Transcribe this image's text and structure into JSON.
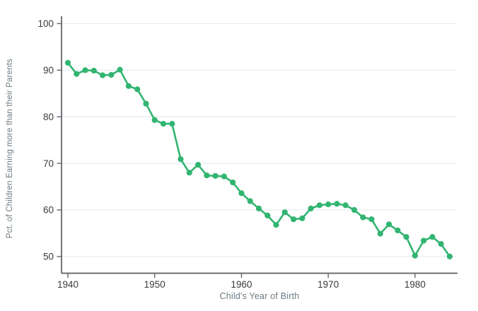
{
  "chart_data": {
    "type": "line",
    "title": "",
    "xlabel": "Child's Year of Birth",
    "ylabel": "Pct. of Children Earning more than their Parents",
    "x_ticks": [
      1940,
      1950,
      1960,
      1970,
      1980
    ],
    "y_ticks": [
      50,
      60,
      70,
      80,
      90,
      100
    ],
    "xlim": [
      1939.3,
      1984.9
    ],
    "ylim": [
      46.5,
      100
    ],
    "grid": "horizontal-only",
    "legend": "none",
    "line_color": "#31b571",
    "grid_color": "#e6eef3",
    "axis_color": "#63676c",
    "tick_label_color": "#3b3b3b",
    "axis_title_color": "#6d7a82",
    "x": [
      1940,
      1941,
      1942,
      1943,
      1944,
      1945,
      1946,
      1947,
      1948,
      1949,
      1950,
      1951,
      1952,
      1953,
      1954,
      1955,
      1956,
      1957,
      1958,
      1959,
      1960,
      1961,
      1962,
      1963,
      1964,
      1965,
      1966,
      1967,
      1968,
      1969,
      1970,
      1971,
      1972,
      1973,
      1974,
      1975,
      1976,
      1977,
      1978,
      1979,
      1980,
      1981,
      1982,
      1983,
      1984
    ],
    "values": [
      91.6,
      89.2,
      90.0,
      89.9,
      88.9,
      89.0,
      90.1,
      86.6,
      85.9,
      82.8,
      79.3,
      78.5,
      78.5,
      70.9,
      68.0,
      69.7,
      67.4,
      67.3,
      67.2,
      65.9,
      63.6,
      61.9,
      60.3,
      58.8,
      56.8,
      59.5,
      58.0,
      58.2,
      60.3,
      61.0,
      61.2,
      61.3,
      61.0,
      60.0,
      58.4,
      58.0,
      54.9,
      56.9,
      55.6,
      54.2,
      50.2,
      53.4,
      54.2,
      52.7,
      50.0
    ]
  }
}
